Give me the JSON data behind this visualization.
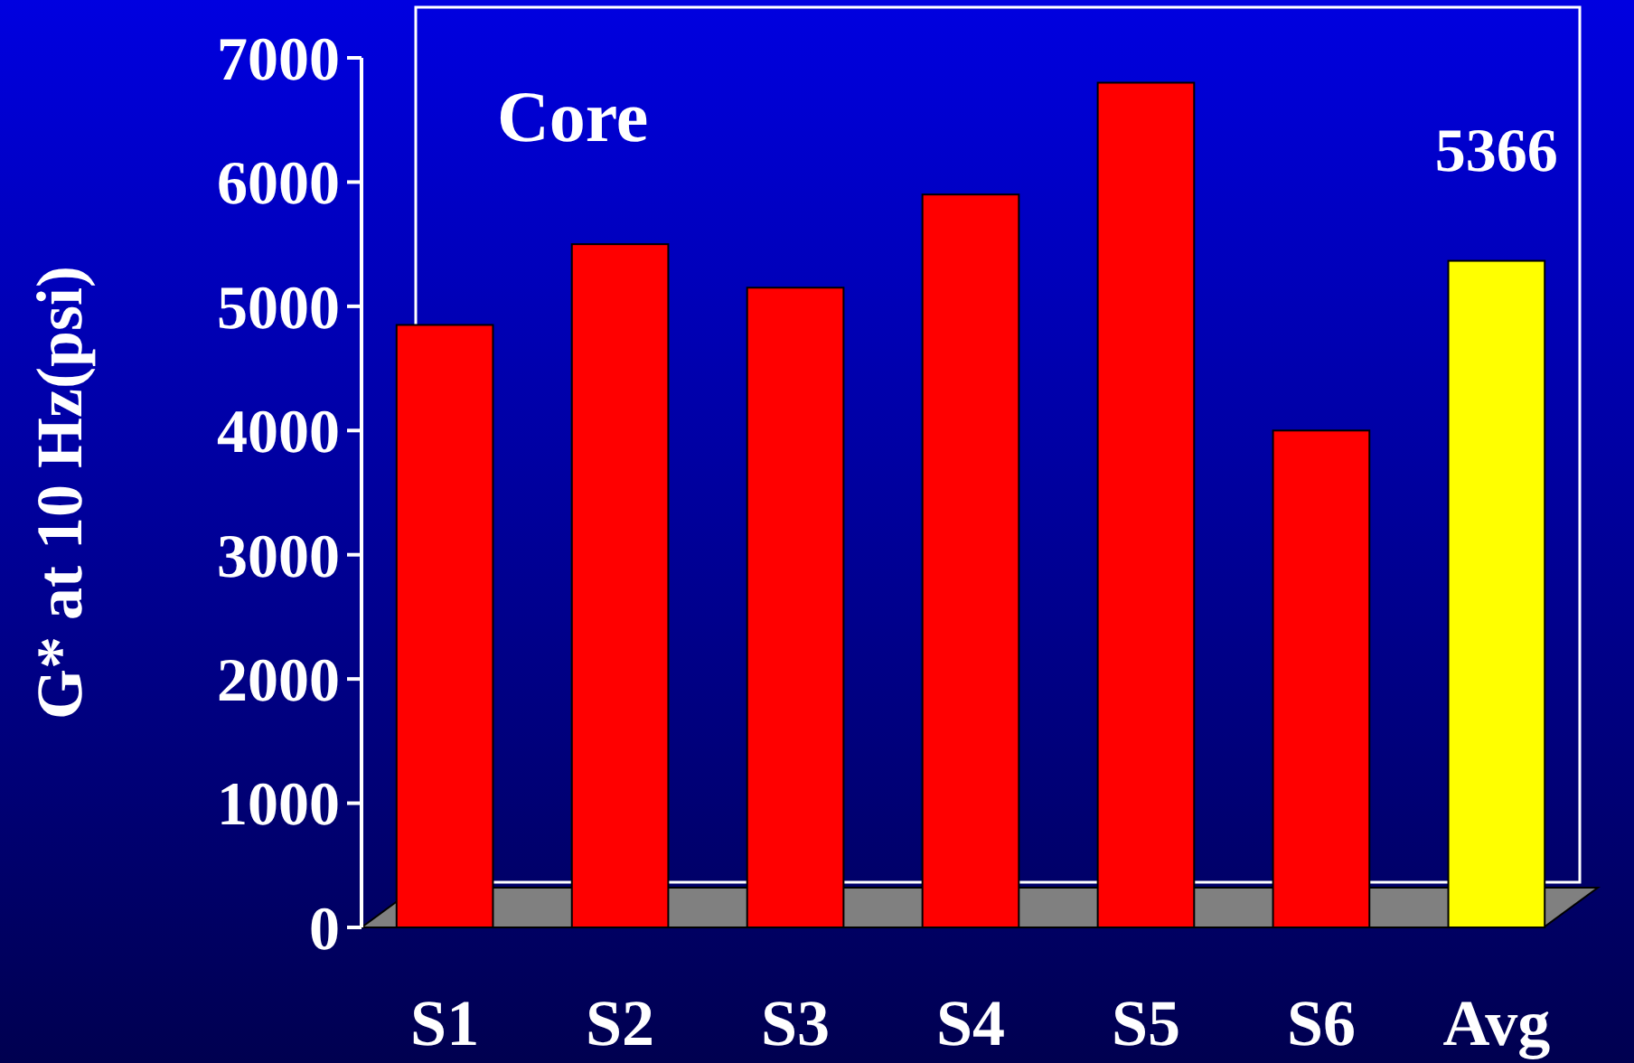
{
  "chart_data": {
    "type": "bar",
    "ylabel": "G* at 10 Hz(psi)",
    "categories": [
      "S1",
      "S2",
      "S3",
      "S4",
      "S5",
      "S6",
      "Avg"
    ],
    "values": [
      4850,
      5500,
      5150,
      5900,
      6800,
      4000,
      5366
    ],
    "colors": [
      "#ff0000",
      "#ff0000",
      "#ff0000",
      "#ff0000",
      "#ff0000",
      "#ff0000",
      "#ffff00"
    ],
    "value_labels": [
      null,
      null,
      null,
      null,
      null,
      null,
      "5366"
    ],
    "annotations": [
      "Core"
    ],
    "ylim": [
      0,
      7000
    ],
    "yticks": [
      0,
      1000,
      2000,
      3000,
      4000,
      5000,
      6000,
      7000
    ]
  }
}
